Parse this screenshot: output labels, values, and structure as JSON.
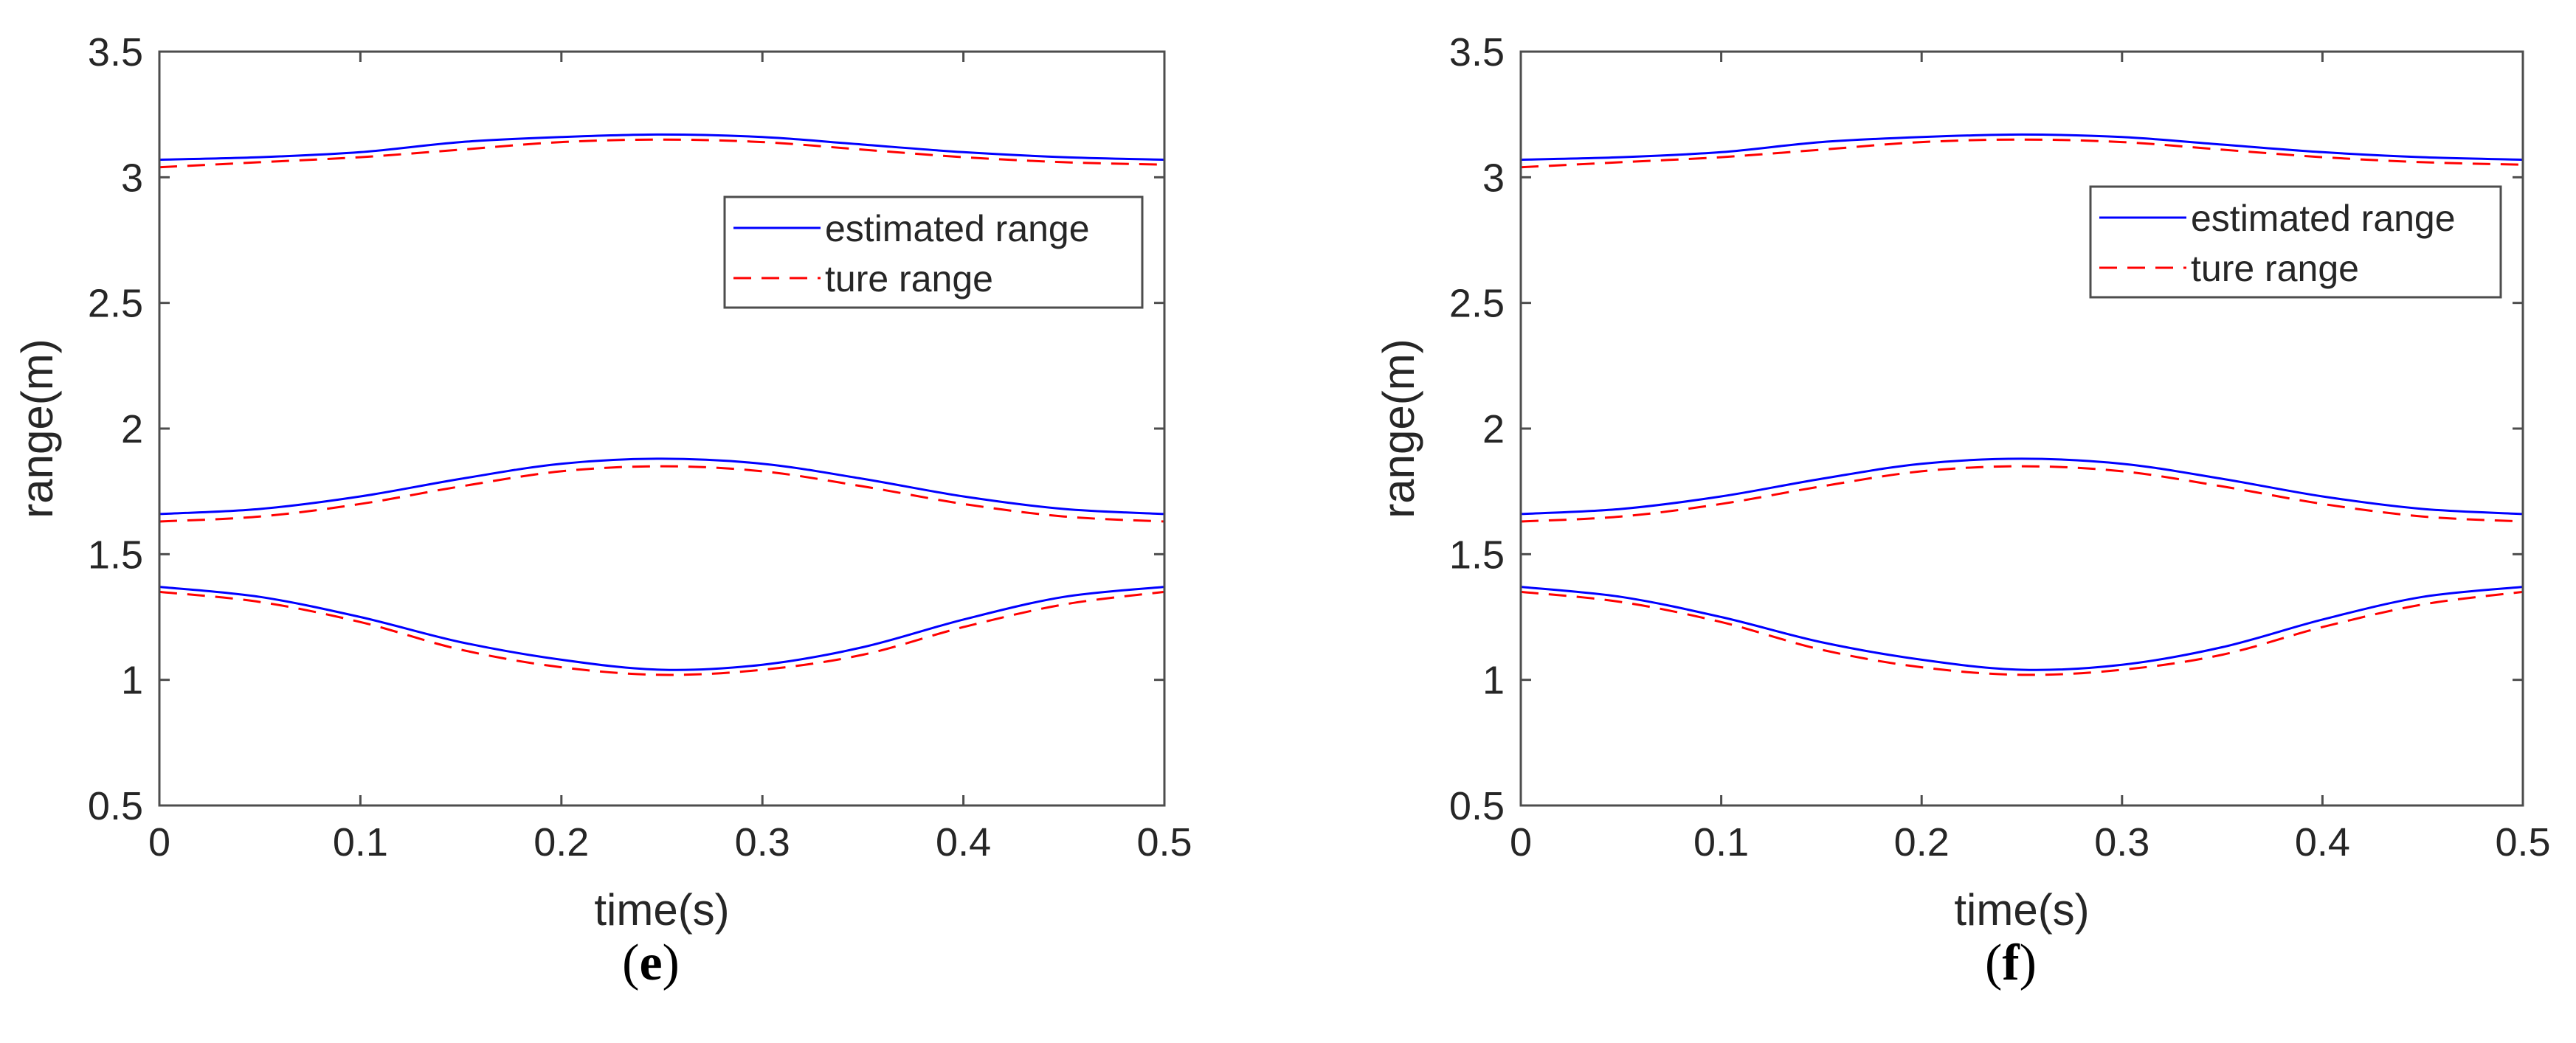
{
  "colors": {
    "estimated": "#0000ff",
    "true": "#ff0000",
    "axis": "#4d4d4d",
    "text": "#262626"
  },
  "chart_data": [
    {
      "type": "line",
      "caption": "e",
      "xlabel": "time(s)",
      "ylabel": "range(m)",
      "xlim": [
        0,
        0.5
      ],
      "ylim": [
        0.5,
        3.5
      ],
      "xticks": [
        "0",
        "0.1",
        "0.2",
        "0.3",
        "0.4",
        "0.5"
      ],
      "yticks": [
        "0.5",
        "1",
        "1.5",
        "2",
        "2.5",
        "3",
        "3.5"
      ],
      "legend": {
        "position": "upper-right",
        "entries": [
          "estimated range",
          "ture range"
        ]
      },
      "x": [
        0,
        0.05,
        0.1,
        0.15,
        0.2,
        0.25,
        0.3,
        0.35,
        0.4,
        0.45,
        0.5
      ],
      "series": [
        {
          "name": "estimated range",
          "style": "solid",
          "group": "target-1",
          "values": [
            3.07,
            3.08,
            3.1,
            3.14,
            3.16,
            3.17,
            3.16,
            3.13,
            3.1,
            3.08,
            3.07
          ]
        },
        {
          "name": "ture range",
          "style": "dashed",
          "group": "target-1",
          "values": [
            3.04,
            3.06,
            3.08,
            3.11,
            3.14,
            3.15,
            3.14,
            3.11,
            3.08,
            3.06,
            3.05
          ]
        },
        {
          "name": "estimated range",
          "style": "solid",
          "group": "target-2",
          "values": [
            1.66,
            1.68,
            1.73,
            1.8,
            1.86,
            1.88,
            1.86,
            1.8,
            1.73,
            1.68,
            1.66
          ]
        },
        {
          "name": "ture range",
          "style": "dashed",
          "group": "target-2",
          "values": [
            1.63,
            1.65,
            1.7,
            1.77,
            1.83,
            1.85,
            1.83,
            1.77,
            1.7,
            1.65,
            1.63
          ]
        },
        {
          "name": "estimated range",
          "style": "solid",
          "group": "target-3",
          "values": [
            1.37,
            1.33,
            1.25,
            1.15,
            1.08,
            1.04,
            1.06,
            1.13,
            1.24,
            1.33,
            1.37
          ]
        },
        {
          "name": "ture range",
          "style": "dashed",
          "group": "target-3",
          "values": [
            1.35,
            1.31,
            1.23,
            1.12,
            1.05,
            1.02,
            1.04,
            1.1,
            1.21,
            1.3,
            1.35
          ]
        }
      ]
    },
    {
      "type": "line",
      "caption": "f",
      "xlabel": "time(s)",
      "ylabel": "range(m)",
      "xlim": [
        0,
        0.5
      ],
      "ylim": [
        0.5,
        3.5
      ],
      "xticks": [
        "0",
        "0.1",
        "0.2",
        "0.3",
        "0.4",
        "0.5"
      ],
      "yticks": [
        "0.5",
        "1",
        "1.5",
        "2",
        "2.5",
        "3",
        "3.5"
      ],
      "legend": {
        "position": "upper-right",
        "entries": [
          "estimated range",
          "ture range"
        ]
      },
      "x": [
        0,
        0.05,
        0.1,
        0.15,
        0.2,
        0.25,
        0.3,
        0.35,
        0.4,
        0.45,
        0.5
      ],
      "series": [
        {
          "name": "estimated range",
          "style": "solid",
          "group": "target-1",
          "values": [
            3.07,
            3.08,
            3.1,
            3.14,
            3.16,
            3.17,
            3.16,
            3.13,
            3.1,
            3.08,
            3.07
          ]
        },
        {
          "name": "ture range",
          "style": "dashed",
          "group": "target-1",
          "values": [
            3.04,
            3.06,
            3.08,
            3.11,
            3.14,
            3.15,
            3.14,
            3.11,
            3.08,
            3.06,
            3.05
          ]
        },
        {
          "name": "estimated range",
          "style": "solid",
          "group": "target-2",
          "values": [
            1.66,
            1.68,
            1.73,
            1.8,
            1.86,
            1.88,
            1.86,
            1.8,
            1.73,
            1.68,
            1.66
          ]
        },
        {
          "name": "ture range",
          "style": "dashed",
          "group": "target-2",
          "values": [
            1.63,
            1.65,
            1.7,
            1.77,
            1.83,
            1.85,
            1.83,
            1.77,
            1.7,
            1.65,
            1.63
          ]
        },
        {
          "name": "estimated range",
          "style": "solid",
          "group": "target-3",
          "values": [
            1.37,
            1.33,
            1.25,
            1.15,
            1.08,
            1.04,
            1.06,
            1.13,
            1.24,
            1.33,
            1.37
          ]
        },
        {
          "name": "ture range",
          "style": "dashed",
          "group": "target-3",
          "values": [
            1.35,
            1.31,
            1.23,
            1.12,
            1.05,
            1.02,
            1.04,
            1.1,
            1.21,
            1.3,
            1.35
          ]
        }
      ]
    }
  ]
}
